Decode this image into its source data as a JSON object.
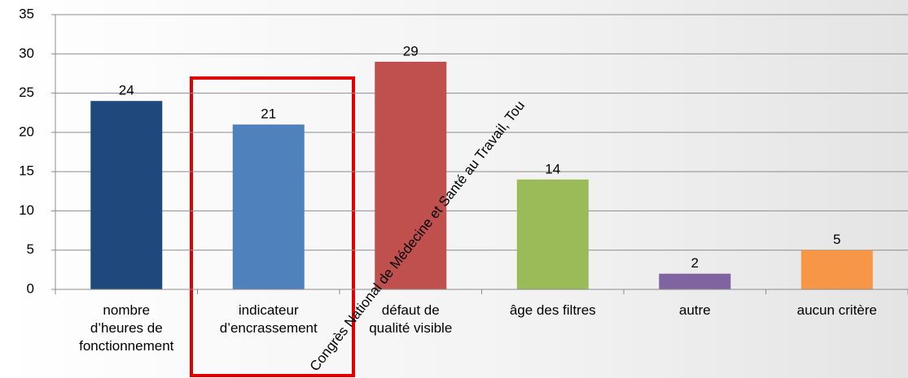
{
  "chart_data": {
    "type": "bar",
    "categories": [
      "nombre\nd’heures de\nfonctionnement",
      "indicateur\nd’encrassement",
      "défaut de\nqualité visible",
      "âge des filtres",
      "autre",
      "aucun critère"
    ],
    "values": [
      24,
      21,
      29,
      14,
      2,
      5
    ],
    "colors": [
      "#1f497d",
      "#4f81bd",
      "#c0504d",
      "#9bbb59",
      "#8064a2",
      "#f79646"
    ],
    "ylim": [
      0,
      35
    ],
    "yticks": [
      0,
      5,
      10,
      15,
      20,
      25,
      30,
      35
    ],
    "grid": true,
    "watermark": "Congrès National de Médecine et Santé au Travail, Tou"
  }
}
